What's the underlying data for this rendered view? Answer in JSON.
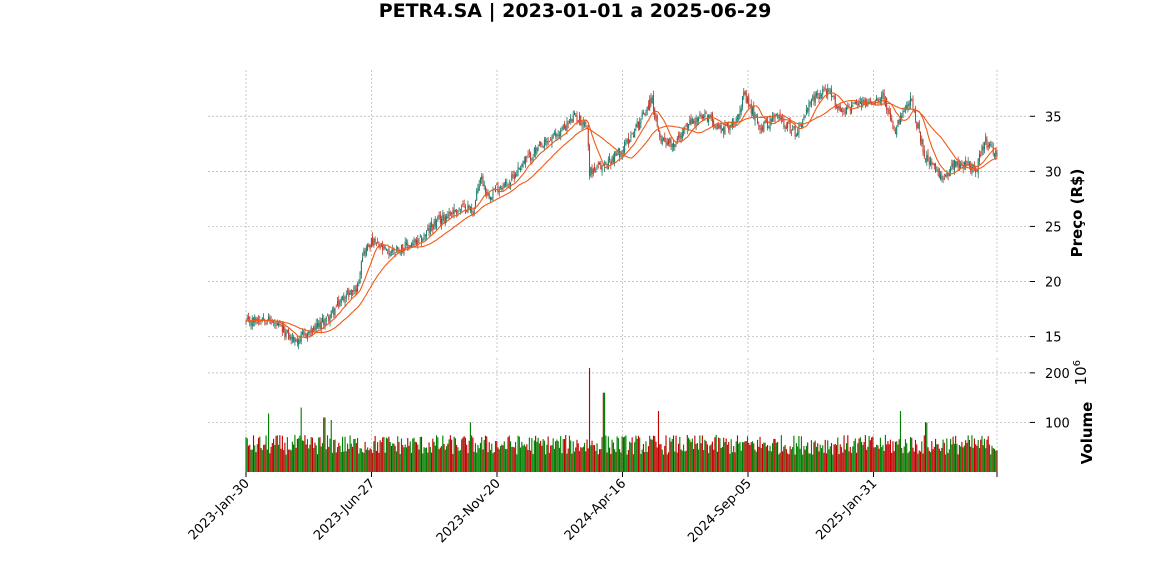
{
  "chart_data": {
    "type": "candlestick",
    "title": "PETR4.SA | 2023-01-01 a 2025-06-29",
    "price_panel": {
      "ylabel": "Preço (R$)",
      "ylim": [
        13.6,
        39.2
      ],
      "yticks": [
        15,
        20,
        25,
        30,
        35
      ],
      "grid": true,
      "y_axis_side": "right",
      "moving_averages": 2,
      "trend_points": [
        [
          "2023-01-30",
          16.2
        ],
        [
          "2023-02-20",
          16.8
        ],
        [
          "2023-03-15",
          15.5
        ],
        [
          "2023-03-28",
          14.6
        ],
        [
          "2023-04-20",
          15.6
        ],
        [
          "2023-05-10",
          17.0
        ],
        [
          "2023-05-25",
          18.6
        ],
        [
          "2023-06-10",
          19.5
        ],
        [
          "2023-06-15",
          22.5
        ],
        [
          "2023-06-27",
          23.6
        ],
        [
          "2023-07-15",
          22.6
        ],
        [
          "2023-08-01",
          23.1
        ],
        [
          "2023-08-20",
          23.5
        ],
        [
          "2023-09-05",
          25.0
        ],
        [
          "2023-09-25",
          26.2
        ],
        [
          "2023-10-15",
          26.8
        ],
        [
          "2023-10-24",
          26.4
        ],
        [
          "2023-11-01",
          29.6
        ],
        [
          "2023-11-10",
          27.8
        ],
        [
          "2023-11-20",
          28.5
        ],
        [
          "2023-12-05",
          29.0
        ],
        [
          "2023-12-20",
          30.8
        ],
        [
          "2024-01-10",
          32.1
        ],
        [
          "2024-02-01",
          33.5
        ],
        [
          "2024-02-20",
          35.0
        ],
        [
          "2024-03-05",
          34.2
        ],
        [
          "2024-03-08",
          30.0
        ],
        [
          "2024-03-25",
          30.5
        ],
        [
          "2024-04-16",
          32.0
        ],
        [
          "2024-05-05",
          34.5
        ],
        [
          "2024-05-20",
          36.6
        ],
        [
          "2024-05-28",
          33.2
        ],
        [
          "2024-06-15",
          32.5
        ],
        [
          "2024-07-05",
          34.5
        ],
        [
          "2024-07-25",
          35.0
        ],
        [
          "2024-08-10",
          33.8
        ],
        [
          "2024-08-25",
          34.5
        ],
        [
          "2024-09-05",
          36.8
        ],
        [
          "2024-09-25",
          34.0
        ],
        [
          "2024-10-15",
          35.0
        ],
        [
          "2024-11-05",
          33.5
        ],
        [
          "2024-11-25",
          36.5
        ],
        [
          "2024-12-10",
          37.5
        ],
        [
          "2024-12-28",
          35.5
        ],
        [
          "2025-01-15",
          36.0
        ],
        [
          "2025-01-31",
          36.3
        ],
        [
          "2025-02-15",
          37.0
        ],
        [
          "2025-02-28",
          33.5
        ],
        [
          "2025-03-20",
          36.5
        ],
        [
          "2025-04-05",
          31.5
        ],
        [
          "2025-04-25",
          29.2
        ],
        [
          "2025-05-10",
          30.8
        ],
        [
          "2025-06-05",
          30.3
        ],
        [
          "2025-06-15",
          32.8
        ],
        [
          "2025-06-29",
          31.3
        ]
      ]
    },
    "volume_panel": {
      "ylabel": "Volume",
      "ylabel_exponent": "10^6",
      "ylim": [
        0,
        230
      ],
      "yticks": [
        100,
        200
      ],
      "grid": true,
      "spikes": [
        [
          "2023-02-25",
          118
        ],
        [
          "2023-04-05",
          130
        ],
        [
          "2023-05-02",
          110
        ],
        [
          "2023-05-10",
          105
        ],
        [
          "2023-10-20",
          100
        ],
        [
          "2024-03-08",
          210
        ],
        [
          "2024-03-25",
          160
        ],
        [
          "2024-05-28",
          123
        ],
        [
          "2025-03-08",
          123
        ],
        [
          "2025-04-07",
          100
        ]
      ]
    },
    "x_axis": {
      "start": "2023-01-30",
      "end": "2025-06-29",
      "tick_labels": [
        "2023-Jan-30",
        "2023-Jun-27",
        "2023-Nov-20",
        "2024-Apr-16",
        "2024-Sep-05",
        "2025-Jan-31"
      ]
    },
    "colors": {
      "up_candle": "#1a7a68",
      "down_candle": "#c0392b",
      "volume_up": "#008000",
      "volume_down": "#c00000",
      "moving_average": "#f05a1a",
      "grid": "#b3b3b3"
    }
  }
}
